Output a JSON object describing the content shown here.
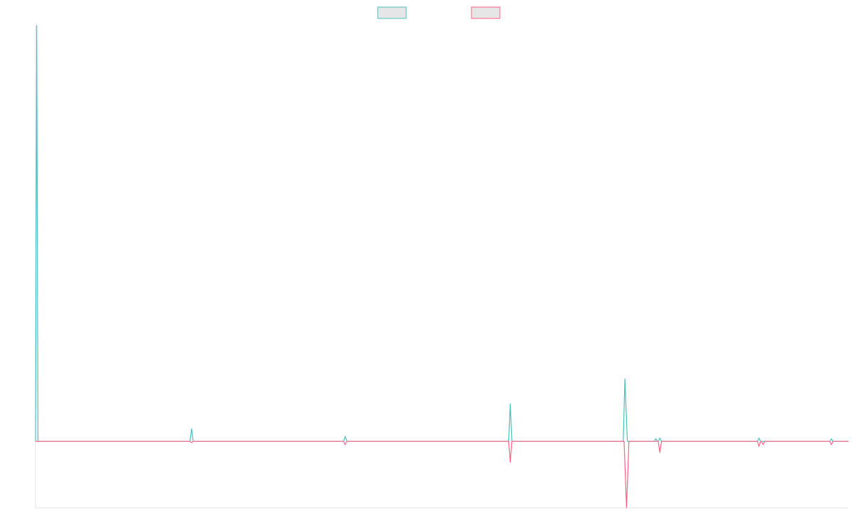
{
  "chart_data": {
    "type": "line",
    "title": "",
    "xlabel": "",
    "ylabel": "",
    "grid": false,
    "legend_position": "top-center",
    "x_range": [
      0,
      1000
    ],
    "ylim": [
      -16,
      100
    ],
    "series": [
      {
        "color": "#4bc0c0",
        "legend_fill": "#e6e6e6",
        "points": [
          [
            0,
            0
          ],
          [
            1.5,
            100
          ],
          [
            3,
            0
          ],
          [
            190,
            0
          ],
          [
            192,
            3
          ],
          [
            194,
            0
          ],
          [
            379,
            0
          ],
          [
            381,
            1.2
          ],
          [
            383,
            0
          ],
          [
            582,
            0
          ],
          [
            584,
            9
          ],
          [
            586,
            0
          ],
          [
            723,
            0
          ],
          [
            725,
            15
          ],
          [
            728,
            0
          ],
          [
            761,
            0
          ],
          [
            763,
            0.6
          ],
          [
            765,
            0
          ],
          [
            766,
            0
          ],
          [
            768,
            0.8
          ],
          [
            770,
            0
          ],
          [
            888,
            0
          ],
          [
            890,
            0.8
          ],
          [
            892,
            0
          ],
          [
            977,
            0
          ],
          [
            979,
            0.6
          ],
          [
            981,
            0
          ],
          [
            1000,
            0
          ]
        ]
      },
      {
        "color": "#ff6384",
        "legend_fill": "#e6e6e6",
        "points": [
          [
            0,
            0
          ],
          [
            190,
            0
          ],
          [
            192,
            -0.3
          ],
          [
            194,
            0
          ],
          [
            379,
            0
          ],
          [
            381,
            -0.8
          ],
          [
            383,
            0
          ],
          [
            582,
            0
          ],
          [
            584,
            -5
          ],
          [
            586,
            0
          ],
          [
            724,
            0
          ],
          [
            727,
            -16
          ],
          [
            730,
            0
          ],
          [
            766,
            0
          ],
          [
            768,
            -2.7
          ],
          [
            770,
            0
          ],
          [
            888,
            0
          ],
          [
            890,
            -1.2
          ],
          [
            892,
            0
          ],
          [
            893,
            0
          ],
          [
            895,
            -0.8
          ],
          [
            897,
            0
          ],
          [
            977,
            0
          ],
          [
            979,
            -0.8
          ],
          [
            981,
            0
          ],
          [
            1000,
            0
          ]
        ]
      }
    ]
  }
}
